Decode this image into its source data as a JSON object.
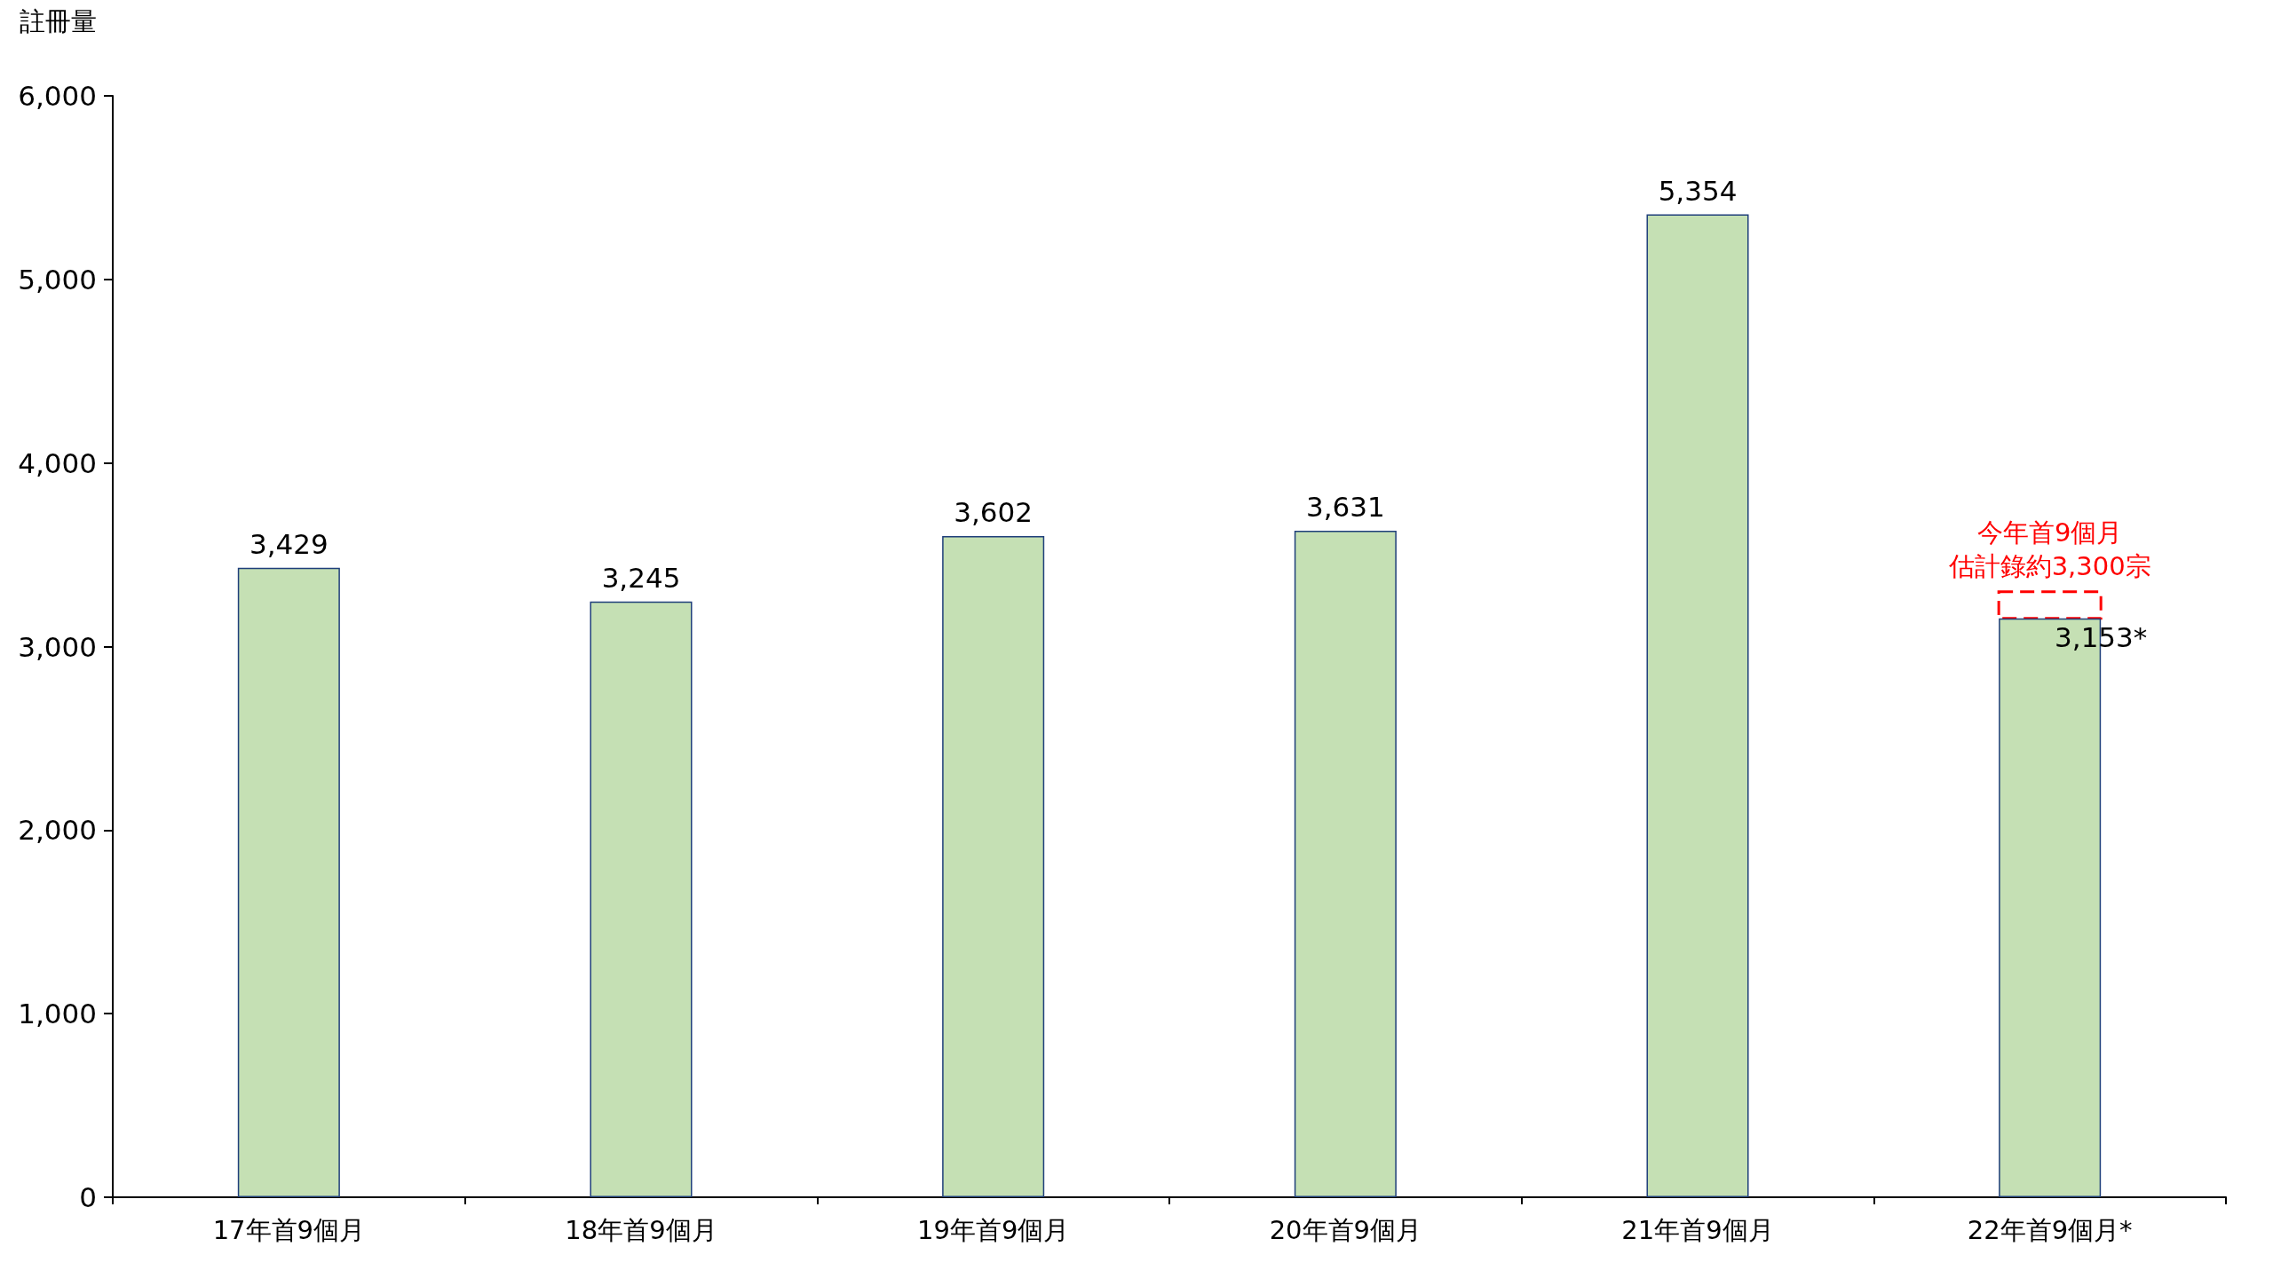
{
  "chart_data": {
    "type": "bar",
    "ylabel": "註冊量",
    "categories": [
      "17年首9個月",
      "18年首9個月",
      "19年首9個月",
      "20年首9個月",
      "21年首9個月",
      "22年首9個月*"
    ],
    "values": [
      3429,
      3245,
      3602,
      3631,
      5354,
      3153
    ],
    "value_labels": [
      "3,429",
      "3,245",
      "3,602",
      "3,631",
      "5,354",
      "3,153*"
    ],
    "color": "#c5e0b4",
    "ylim": [
      0,
      6000
    ],
    "yticks": [
      0,
      {
        "value": 1000,
        "label": "1,000"
      },
      {
        "value": 2000,
        "label": "2,000"
      },
      {
        "value": 3000,
        "label": "3,000"
      },
      {
        "value": 4000,
        "label": "4,000"
      },
      {
        "value": 5000,
        "label": "5,000"
      },
      {
        "value": 6000,
        "label": "6,000"
      }
    ],
    "grid": false,
    "annotations": [
      "今年首9個月",
      "估計錄約3,300宗"
    ]
  }
}
